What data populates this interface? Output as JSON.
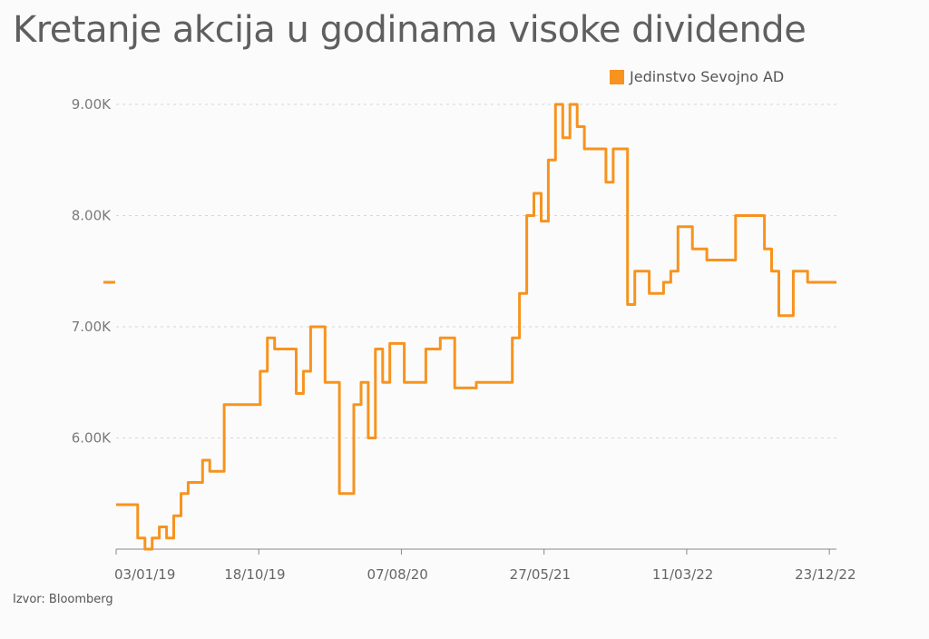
{
  "page": {
    "source": "Izvor: Bloomberg"
  },
  "chart_data": {
    "type": "line",
    "title": "Kretanje akcija u godinama visoke dividende",
    "xlabel": "",
    "ylabel": "",
    "ylim": [
      5000,
      9000
    ],
    "yticks": [
      6000,
      7000,
      8000,
      9000
    ],
    "ytick_labels": [
      "6.00K",
      "7.00K",
      "8.00K",
      "9.00K"
    ],
    "xtick_labels": [
      "03/01/19",
      "18/10/19",
      "07/08/20",
      "27/05/21",
      "11/03/22",
      "23/12/22"
    ],
    "grid": true,
    "legend_position": "top-right",
    "colors": {
      "series": "#f7931e",
      "grid": "#d6d6d6",
      "text": "#5f5f5f"
    },
    "series": [
      {
        "name": "Jedinstvo Sevojno AD",
        "x": [
          0.0,
          0.03,
          0.03,
          0.04,
          0.04,
          0.05,
          0.05,
          0.06,
          0.06,
          0.07,
          0.07,
          0.08,
          0.08,
          0.09,
          0.09,
          0.1,
          0.1,
          0.12,
          0.12,
          0.13,
          0.13,
          0.15,
          0.15,
          0.18,
          0.18,
          0.2,
          0.2,
          0.21,
          0.21,
          0.22,
          0.22,
          0.25,
          0.25,
          0.26,
          0.26,
          0.27,
          0.27,
          0.29,
          0.29,
          0.31,
          0.31,
          0.33,
          0.33,
          0.34,
          0.34,
          0.35,
          0.35,
          0.36,
          0.36,
          0.37,
          0.37,
          0.38,
          0.38,
          0.4,
          0.4,
          0.43,
          0.43,
          0.45,
          0.45,
          0.47,
          0.47,
          0.5,
          0.5,
          0.53,
          0.53,
          0.55,
          0.55,
          0.56,
          0.56,
          0.57,
          0.57,
          0.58,
          0.58,
          0.59,
          0.59,
          0.6,
          0.6,
          0.61,
          0.61,
          0.62,
          0.62,
          0.63,
          0.63,
          0.64,
          0.64,
          0.65,
          0.65,
          0.68,
          0.68,
          0.69,
          0.69,
          0.71,
          0.71,
          0.72,
          0.72,
          0.74,
          0.74,
          0.76,
          0.76,
          0.77,
          0.77,
          0.78,
          0.78,
          0.8,
          0.8,
          0.82,
          0.82,
          0.84,
          0.84,
          0.86,
          0.86,
          0.88,
          0.88,
          0.9,
          0.9,
          0.91,
          0.91,
          0.92,
          0.92,
          0.94,
          0.94,
          0.96,
          0.96,
          0.97,
          0.97,
          1.0
        ],
        "values": [
          5400,
          5400,
          5100,
          5100,
          5000,
          5000,
          5100,
          5100,
          5200,
          5200,
          5100,
          5100,
          5300,
          5300,
          5500,
          5500,
          5600,
          5600,
          5800,
          5800,
          5700,
          5700,
          6300,
          6300,
          6300,
          6300,
          6600,
          6600,
          6900,
          6900,
          6800,
          6800,
          6400,
          6400,
          6600,
          6600,
          7000,
          7000,
          6500,
          6500,
          5500,
          5500,
          6300,
          6300,
          6500,
          6500,
          6000,
          6000,
          6800,
          6800,
          6500,
          6500,
          6850,
          6850,
          6500,
          6500,
          6800,
          6800,
          6900,
          6900,
          6450,
          6450,
          6500,
          6500,
          6500,
          6500,
          6900,
          6900,
          7300,
          7300,
          8000,
          8000,
          8200,
          8200,
          7950,
          7950,
          8500,
          8500,
          9000,
          9000,
          8700,
          8700,
          9000,
          9000,
          8800,
          8800,
          8600,
          8600,
          8300,
          8300,
          8600,
          8600,
          7200,
          7200,
          7500,
          7500,
          7300,
          7300,
          7400,
          7400,
          7500,
          7500,
          7900,
          7900,
          7700,
          7700,
          7600,
          7600,
          7600,
          7600,
          8000,
          8000,
          8000,
          8000,
          7700,
          7700,
          7500,
          7500,
          7100,
          7100,
          7500,
          7500,
          7400,
          7400,
          7400,
          7400
        ]
      }
    ]
  }
}
